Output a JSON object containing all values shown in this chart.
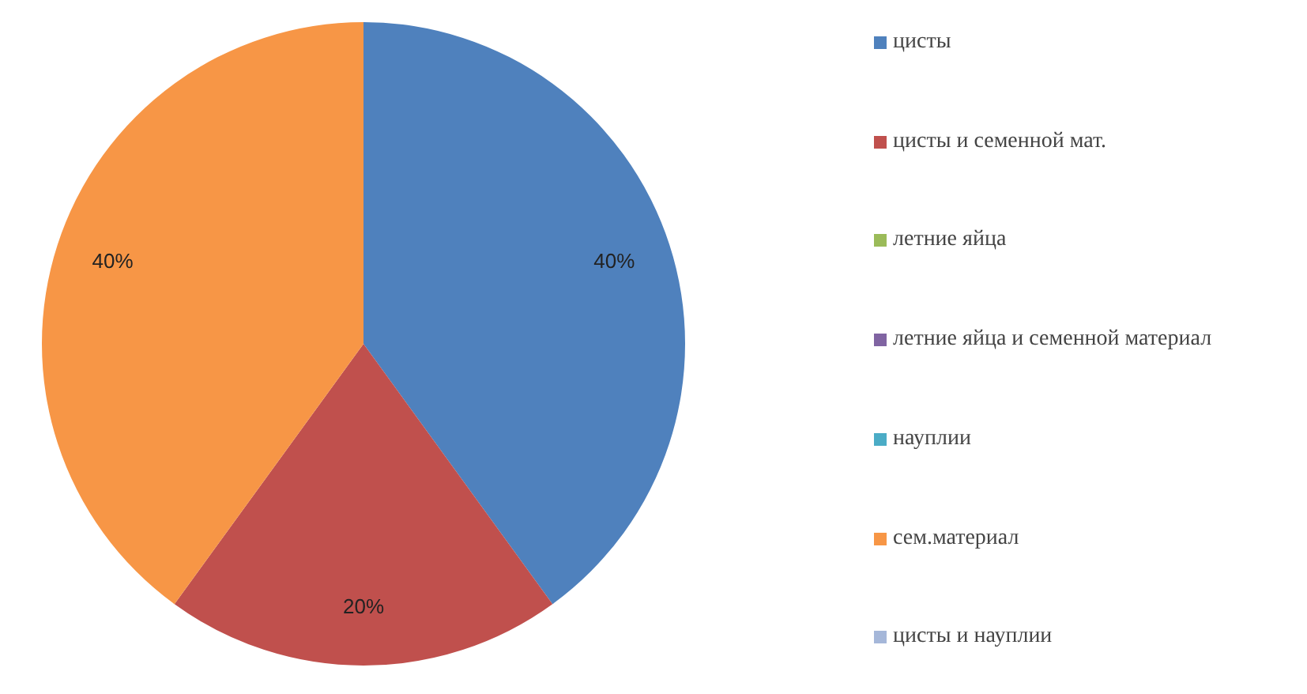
{
  "chart_data": {
    "type": "pie",
    "categories": [
      "цисты",
      "цисты и семенной мат.",
      "летние яйца",
      "летние яйца и семенной материал",
      "науплии",
      "сем.материал",
      "цисты и науплии"
    ],
    "values": [
      40,
      20,
      0,
      0,
      0,
      40,
      0
    ],
    "colors": [
      "#4f81bd",
      "#c0504d",
      "#9bbb59",
      "#8064a2",
      "#4bacc6",
      "#f79646",
      "#a5b7d9"
    ],
    "value_labels": [
      "40%",
      "20%",
      null,
      null,
      null,
      "40%",
      null
    ],
    "legend": "right"
  }
}
